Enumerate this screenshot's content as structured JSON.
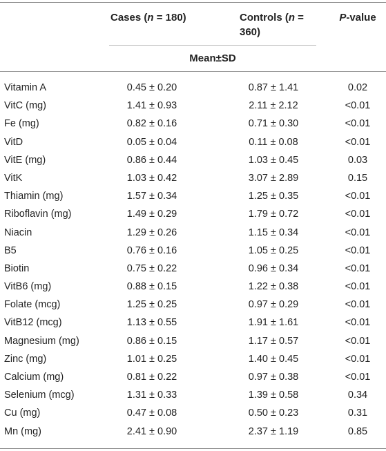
{
  "header": {
    "cases_label_prefix": "Cases (",
    "cases_n_var": "n",
    "cases_label_suffix": " = 180)",
    "controls_label_prefix": "Controls (",
    "controls_n_var": "n",
    "controls_label_suffix": " = 360)",
    "pvalue_italic": "P",
    "pvalue_suffix": "-value",
    "subheader": "Mean±SD"
  },
  "rows": [
    {
      "label": "Vitamin A",
      "cases": "0.45 ± 0.20",
      "controls": "0.87 ± 1.41",
      "p": "0.02"
    },
    {
      "label": "VitC (mg)",
      "cases": "1.41 ± 0.93",
      "controls": "2.11 ± 2.12",
      "p": "<0.01"
    },
    {
      "label": "Fe (mg)",
      "cases": "0.82 ± 0.16",
      "controls": "0.71 ± 0.30",
      "p": "<0.01"
    },
    {
      "label": "VitD",
      "cases": "0.05 ± 0.04",
      "controls": "0.11 ± 0.08",
      "p": "<0.01"
    },
    {
      "label": "VitE (mg)",
      "cases": "0.86 ± 0.44",
      "controls": "1.03 ± 0.45",
      "p": "0.03"
    },
    {
      "label": "VitK",
      "cases": "1.03 ± 0.42",
      "controls": "3.07 ± 2.89",
      "p": "0.15"
    },
    {
      "label": "Thiamin (mg)",
      "cases": "1.57 ± 0.34",
      "controls": "1.25 ± 0.35",
      "p": "<0.01"
    },
    {
      "label": "Riboflavin (mg)",
      "cases": "1.49 ± 0.29",
      "controls": "1.79 ± 0.72",
      "p": "<0.01"
    },
    {
      "label": "Niacin",
      "cases": "1.29 ± 0.26",
      "controls": "1.15 ± 0.34",
      "p": "<0.01"
    },
    {
      "label": "B5",
      "cases": "0.76 ± 0.16",
      "controls": "1.05 ± 0.25",
      "p": "<0.01"
    },
    {
      "label": "Biotin",
      "cases": "0.75 ± 0.22",
      "controls": "0.96 ± 0.34",
      "p": "<0.01"
    },
    {
      "label": "VitB6 (mg)",
      "cases": "0.88 ± 0.15",
      "controls": "1.22 ± 0.38",
      "p": "<0.01"
    },
    {
      "label": "Folate (mcg)",
      "cases": "1.25 ± 0.25",
      "controls": "0.97 ± 0.29",
      "p": "<0.01"
    },
    {
      "label": "VitB12 (mcg)",
      "cases": "1.13 ± 0.55",
      "controls": "1.91 ± 1.61",
      "p": "<0.01"
    },
    {
      "label": "Magnesium (mg)",
      "cases": "0.86 ± 0.15",
      "controls": "1.17 ± 0.57",
      "p": "<0.01"
    },
    {
      "label": "Zinc (mg)",
      "cases": "1.01 ± 0.25",
      "controls": "1.40 ± 0.45",
      "p": "<0.01"
    },
    {
      "label": "Calcium (mg)",
      "cases": "0.81 ± 0.22",
      "controls": "0.97 ± 0.38",
      "p": "<0.01"
    },
    {
      "label": "Selenium (mcg)",
      "cases": "1.31 ± 0.33",
      "controls": "1.39 ± 0.58",
      "p": "0.34"
    },
    {
      "label": "Cu (mg)",
      "cases": "0.47 ± 0.08",
      "controls": "0.50 ± 0.23",
      "p": "0.31"
    },
    {
      "label": "Mn (mg)",
      "cases": "2.41 ± 0.90",
      "controls": "2.37 ± 1.19",
      "p": "0.85"
    }
  ]
}
